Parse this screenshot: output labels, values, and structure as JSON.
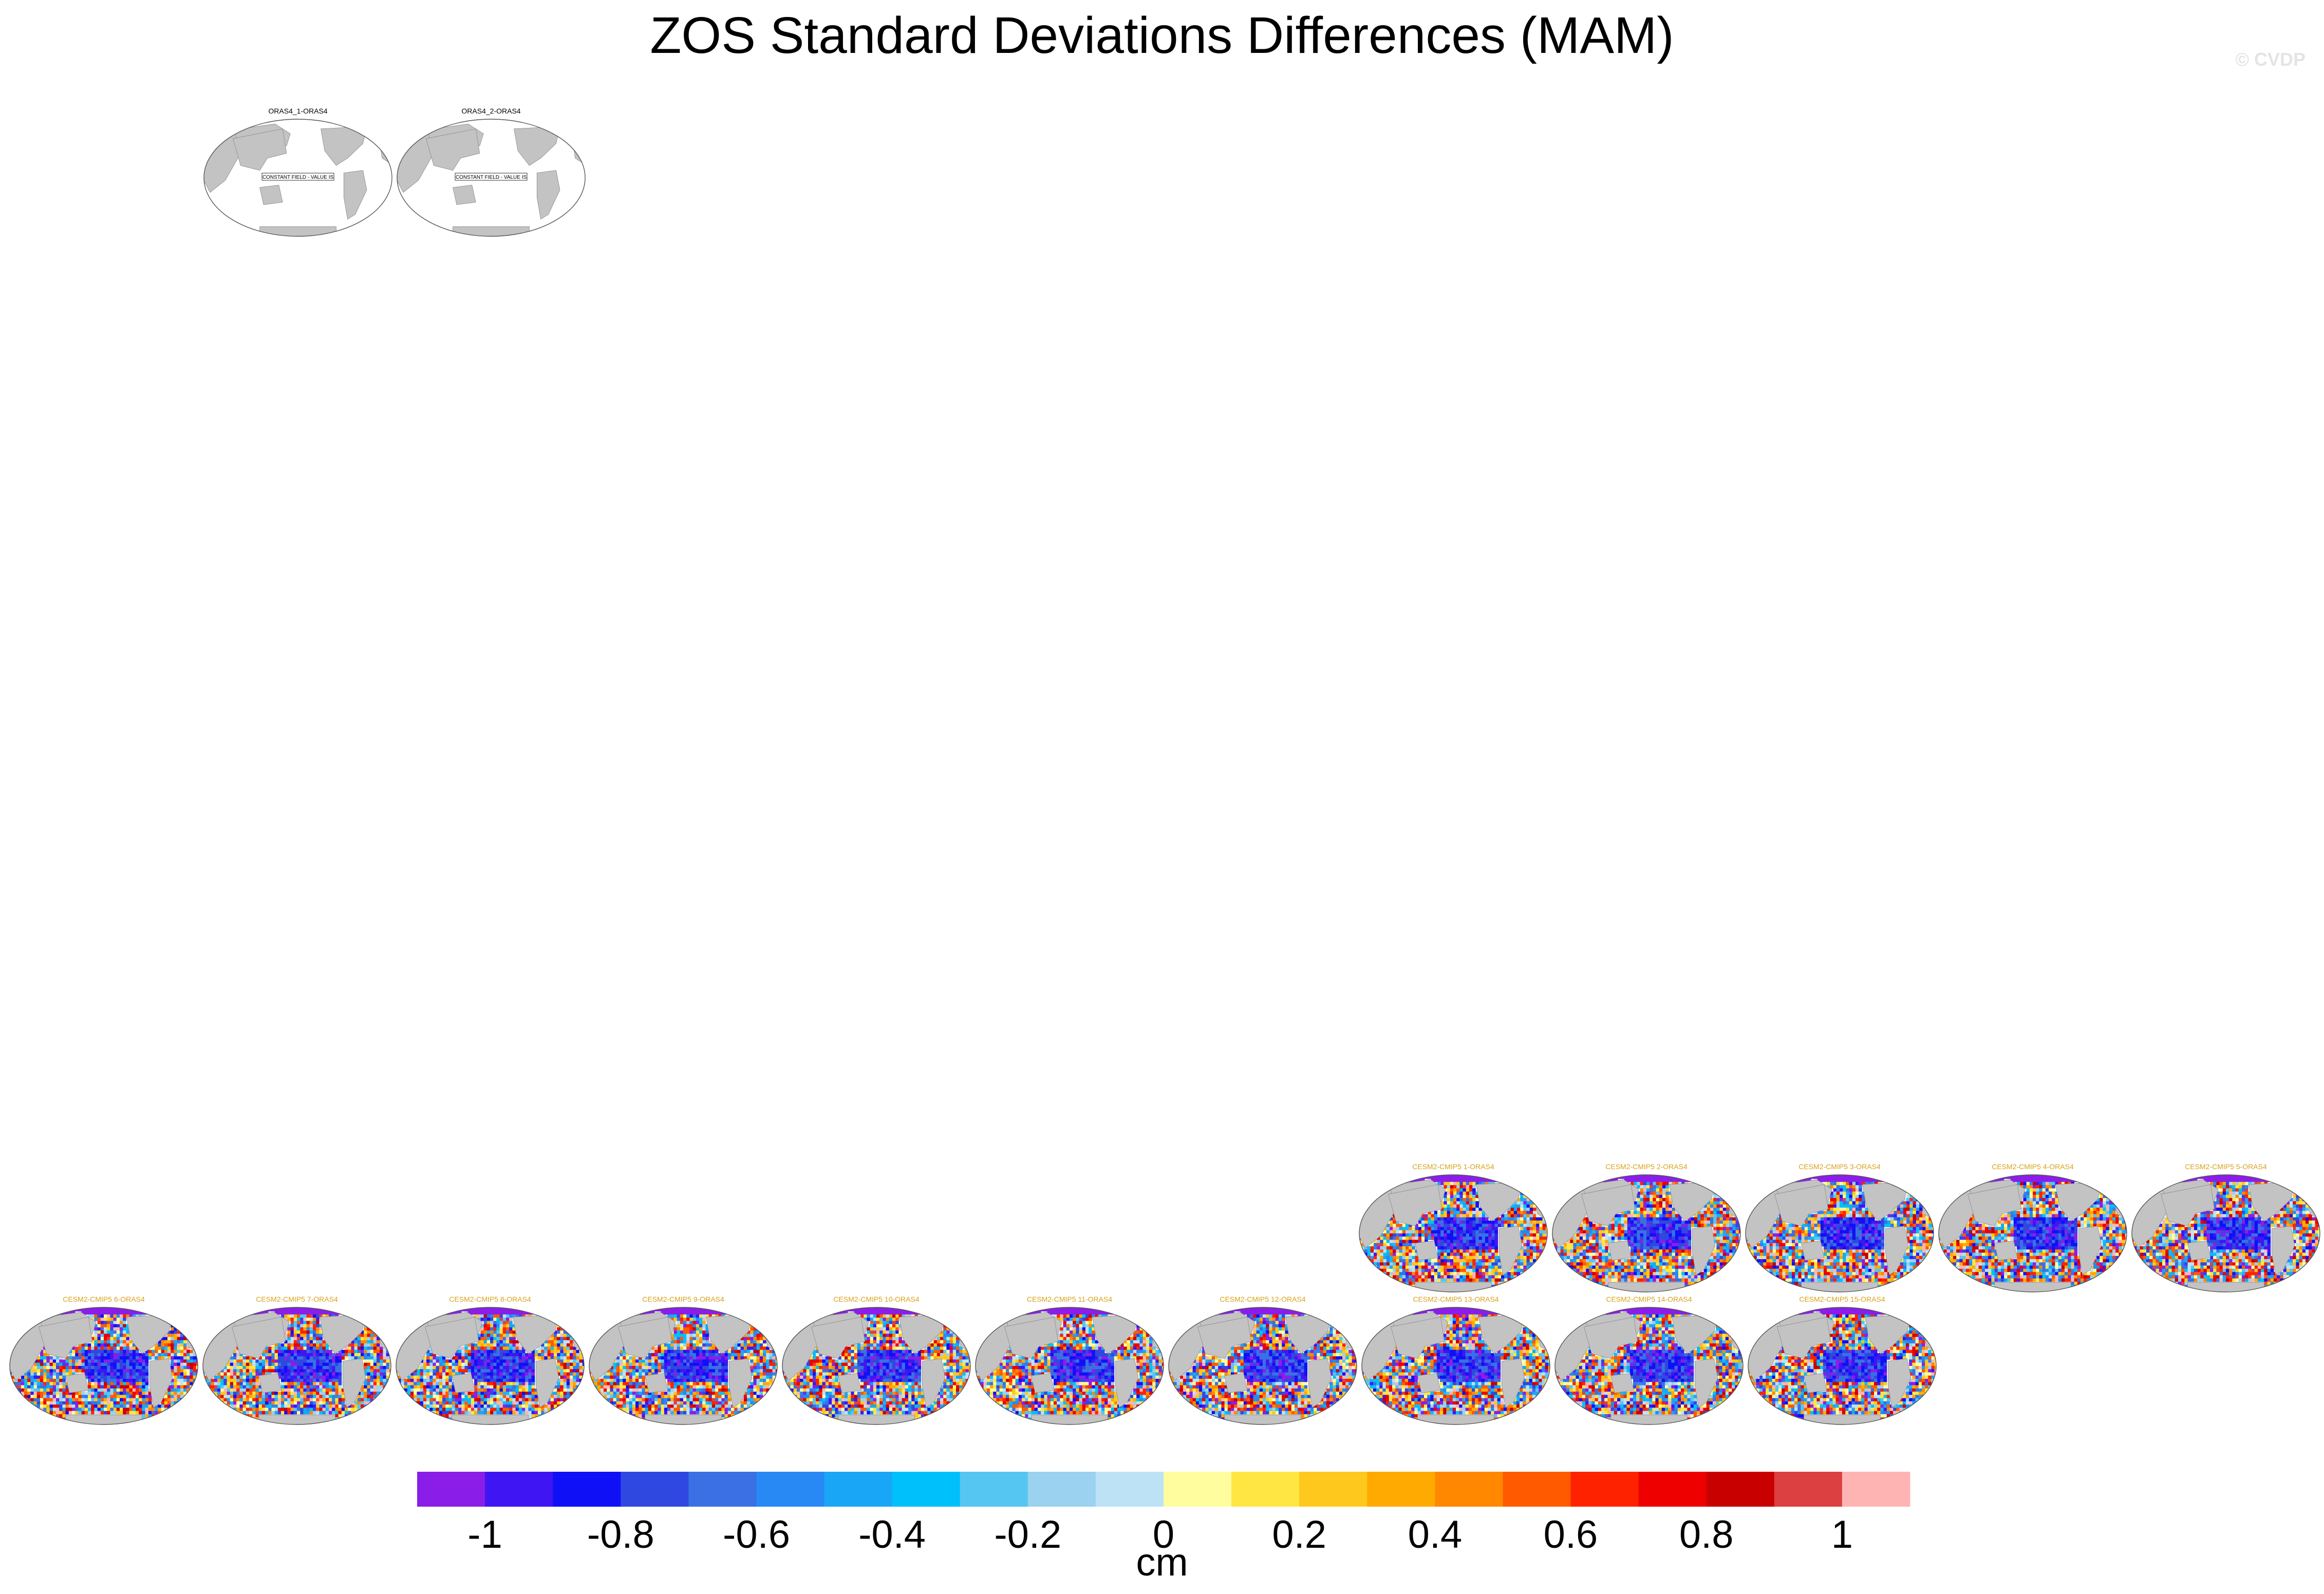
{
  "title": "ZOS Standard Deviations Differences (MAM)",
  "watermark": "© CVDP",
  "colors": {
    "land": "#c3c3c3",
    "ocean_empty": "#ffffff",
    "label_text_ref": "#000000",
    "label_text_model": "#d8a21a"
  },
  "panels": [
    {
      "label": "ORAS4_1-ORAS4",
      "type": "constant",
      "note": "CONSTANT FIELD - VALUE IS"
    },
    {
      "label": "ORAS4_2-ORAS4",
      "type": "constant",
      "note": "CONSTANT FIELD - VALUE IS"
    },
    {
      "label": "CESM2-CMIP5 1-ORAS4",
      "type": "field"
    },
    {
      "label": "CESM2-CMIP5 2-ORAS4",
      "type": "field"
    },
    {
      "label": "CESM2-CMIP5 3-ORAS4",
      "type": "field"
    },
    {
      "label": "CESM2-CMIP5 4-ORAS4",
      "type": "field"
    },
    {
      "label": "CESM2-CMIP5 5-ORAS4",
      "type": "field"
    },
    {
      "label": "CESM2-CMIP5 6-ORAS4",
      "type": "field"
    },
    {
      "label": "CESM2-CMIP5 7-ORAS4",
      "type": "field"
    },
    {
      "label": "CESM2-CMIP5 8-ORAS4",
      "type": "field"
    },
    {
      "label": "CESM2-CMIP5 9-ORAS4",
      "type": "field"
    },
    {
      "label": "CESM2-CMIP5 10-ORAS4",
      "type": "field"
    },
    {
      "label": "CESM2-CMIP5 11-ORAS4",
      "type": "field"
    },
    {
      "label": "CESM2-CMIP5 12-ORAS4",
      "type": "field"
    },
    {
      "label": "CESM2-CMIP5 13-ORAS4",
      "type": "field"
    },
    {
      "label": "CESM2-CMIP5 14-ORAS4",
      "type": "field"
    },
    {
      "label": "CESM2-CMIP5 15-ORAS4",
      "type": "field"
    }
  ],
  "chart_data": {
    "type": "heatmap",
    "title": "ZOS Standard Deviations Differences (MAM)",
    "map_projection": "robinson",
    "colorbar": {
      "units": "cm",
      "levels": [
        -1.1,
        -1.0,
        -0.9,
        -0.8,
        -0.7,
        -0.6,
        -0.5,
        -0.4,
        -0.3,
        -0.2,
        -0.1,
        0,
        0.1,
        0.2,
        0.3,
        0.4,
        0.5,
        0.6,
        0.7,
        0.8,
        0.9,
        1.0,
        1.1
      ],
      "colors": [
        "#8a1ee8",
        "#3f16f3",
        "#1010f6",
        "#2f48e0",
        "#3a70e4",
        "#2888f4",
        "#1aa6f6",
        "#00c0fb",
        "#55c6f2",
        "#9ad2ef",
        "#bde2f6",
        "#fffd9e",
        "#ffe643",
        "#ffc81c",
        "#ffaa00",
        "#ff8800",
        "#ff5a00",
        "#ff2200",
        "#ee0000",
        "#c80000",
        "#dc4040",
        "#ffb4b4"
      ],
      "tick_values": [
        -1,
        -0.8,
        -0.6,
        -0.4,
        -0.2,
        0,
        0.2,
        0.4,
        0.6,
        0.8,
        1
      ],
      "tick_labels": [
        "-1",
        "-0.8",
        "-0.6",
        "-0.4",
        "-0.2",
        "0",
        "0.2",
        "0.4",
        "0.6",
        "0.8",
        "1"
      ]
    }
  }
}
